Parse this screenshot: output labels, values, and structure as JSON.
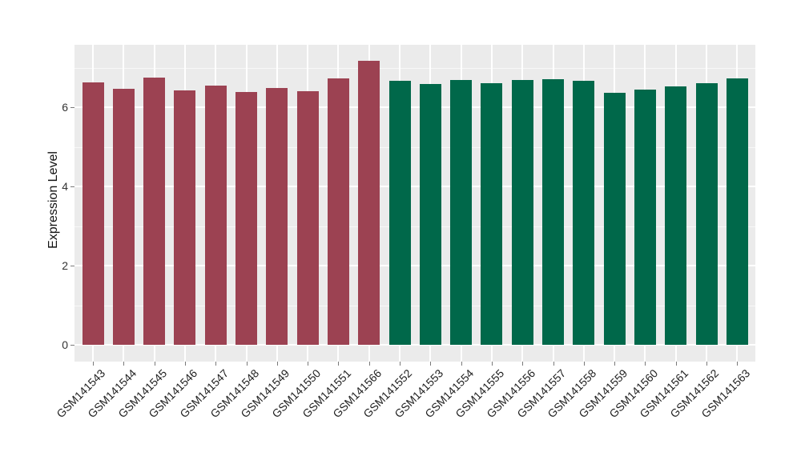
{
  "chart_data": {
    "type": "bar",
    "title": "",
    "xlabel": "",
    "ylabel": "Expression Level",
    "categories": [
      "GSM141543",
      "GSM141544",
      "GSM141545",
      "GSM141546",
      "GSM141547",
      "GSM141548",
      "GSM141549",
      "GSM141550",
      "GSM141551",
      "GSM141566",
      "GSM141552",
      "GSM141553",
      "GSM141554",
      "GSM141555",
      "GSM141556",
      "GSM141557",
      "GSM141558",
      "GSM141559",
      "GSM141560",
      "GSM141561",
      "GSM141562",
      "GSM141563"
    ],
    "values": [
      6.62,
      6.46,
      6.75,
      6.43,
      6.54,
      6.39,
      6.48,
      6.41,
      6.73,
      7.18,
      6.66,
      6.58,
      6.69,
      6.6,
      6.68,
      6.71,
      6.67,
      6.36,
      6.45,
      6.52,
      6.61,
      6.73
    ],
    "bar_groups": [
      1,
      1,
      1,
      1,
      1,
      1,
      1,
      1,
      1,
      1,
      2,
      2,
      2,
      2,
      2,
      2,
      2,
      2,
      2,
      2,
      2,
      2
    ],
    "group_colors": {
      "1": "#9C4252",
      "2": "#00684A"
    },
    "yticks": [
      0,
      2,
      4,
      6
    ],
    "yticks_minor": [
      1,
      3,
      5,
      7
    ],
    "ylim": [
      -0.42,
      7.58
    ],
    "grid": "on",
    "legend": "none",
    "panel_background": "#EBEBEB",
    "grid_color": "#FFFFFF"
  }
}
